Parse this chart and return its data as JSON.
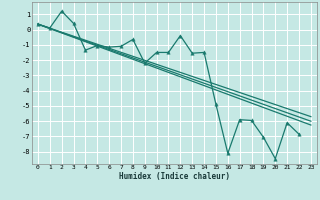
{
  "xlabel": "Humidex (Indice chaleur)",
  "bg_color": "#c5e8e4",
  "grid_color": "#d4d4d4",
  "line_color": "#1a7a6e",
  "xlim": [
    -0.5,
    23.5
  ],
  "ylim": [
    -8.8,
    1.8
  ],
  "xticks": [
    0,
    1,
    2,
    3,
    4,
    5,
    6,
    7,
    8,
    9,
    10,
    11,
    12,
    13,
    14,
    15,
    16,
    17,
    18,
    19,
    20,
    21,
    22,
    23
  ],
  "yticks": [
    1,
    0,
    -1,
    -2,
    -3,
    -4,
    -5,
    -6,
    -7,
    -8
  ],
  "data_x": [
    0,
    1,
    2,
    3,
    4,
    5,
    6,
    7,
    8,
    9,
    10,
    11,
    12,
    13,
    14,
    15,
    16,
    17,
    18,
    19,
    20,
    21,
    22
  ],
  "data_y": [
    0.35,
    0.1,
    1.2,
    0.4,
    -1.35,
    -1.05,
    -1.15,
    -1.1,
    -0.65,
    -2.2,
    -1.5,
    -1.5,
    -0.4,
    -1.55,
    -1.5,
    -4.9,
    -8.1,
    -5.9,
    -5.95,
    -7.05,
    -8.45,
    -6.1,
    -6.85
  ],
  "reg_lines": [
    {
      "x": [
        0,
        23
      ],
      "y": [
        0.35,
        -5.7
      ]
    },
    {
      "x": [
        0,
        23
      ],
      "y": [
        0.35,
        -6.0
      ]
    },
    {
      "x": [
        0,
        23
      ],
      "y": [
        0.35,
        -6.25
      ]
    }
  ],
  "marker": "^",
  "markersize": 2.5,
  "linewidth": 0.9
}
